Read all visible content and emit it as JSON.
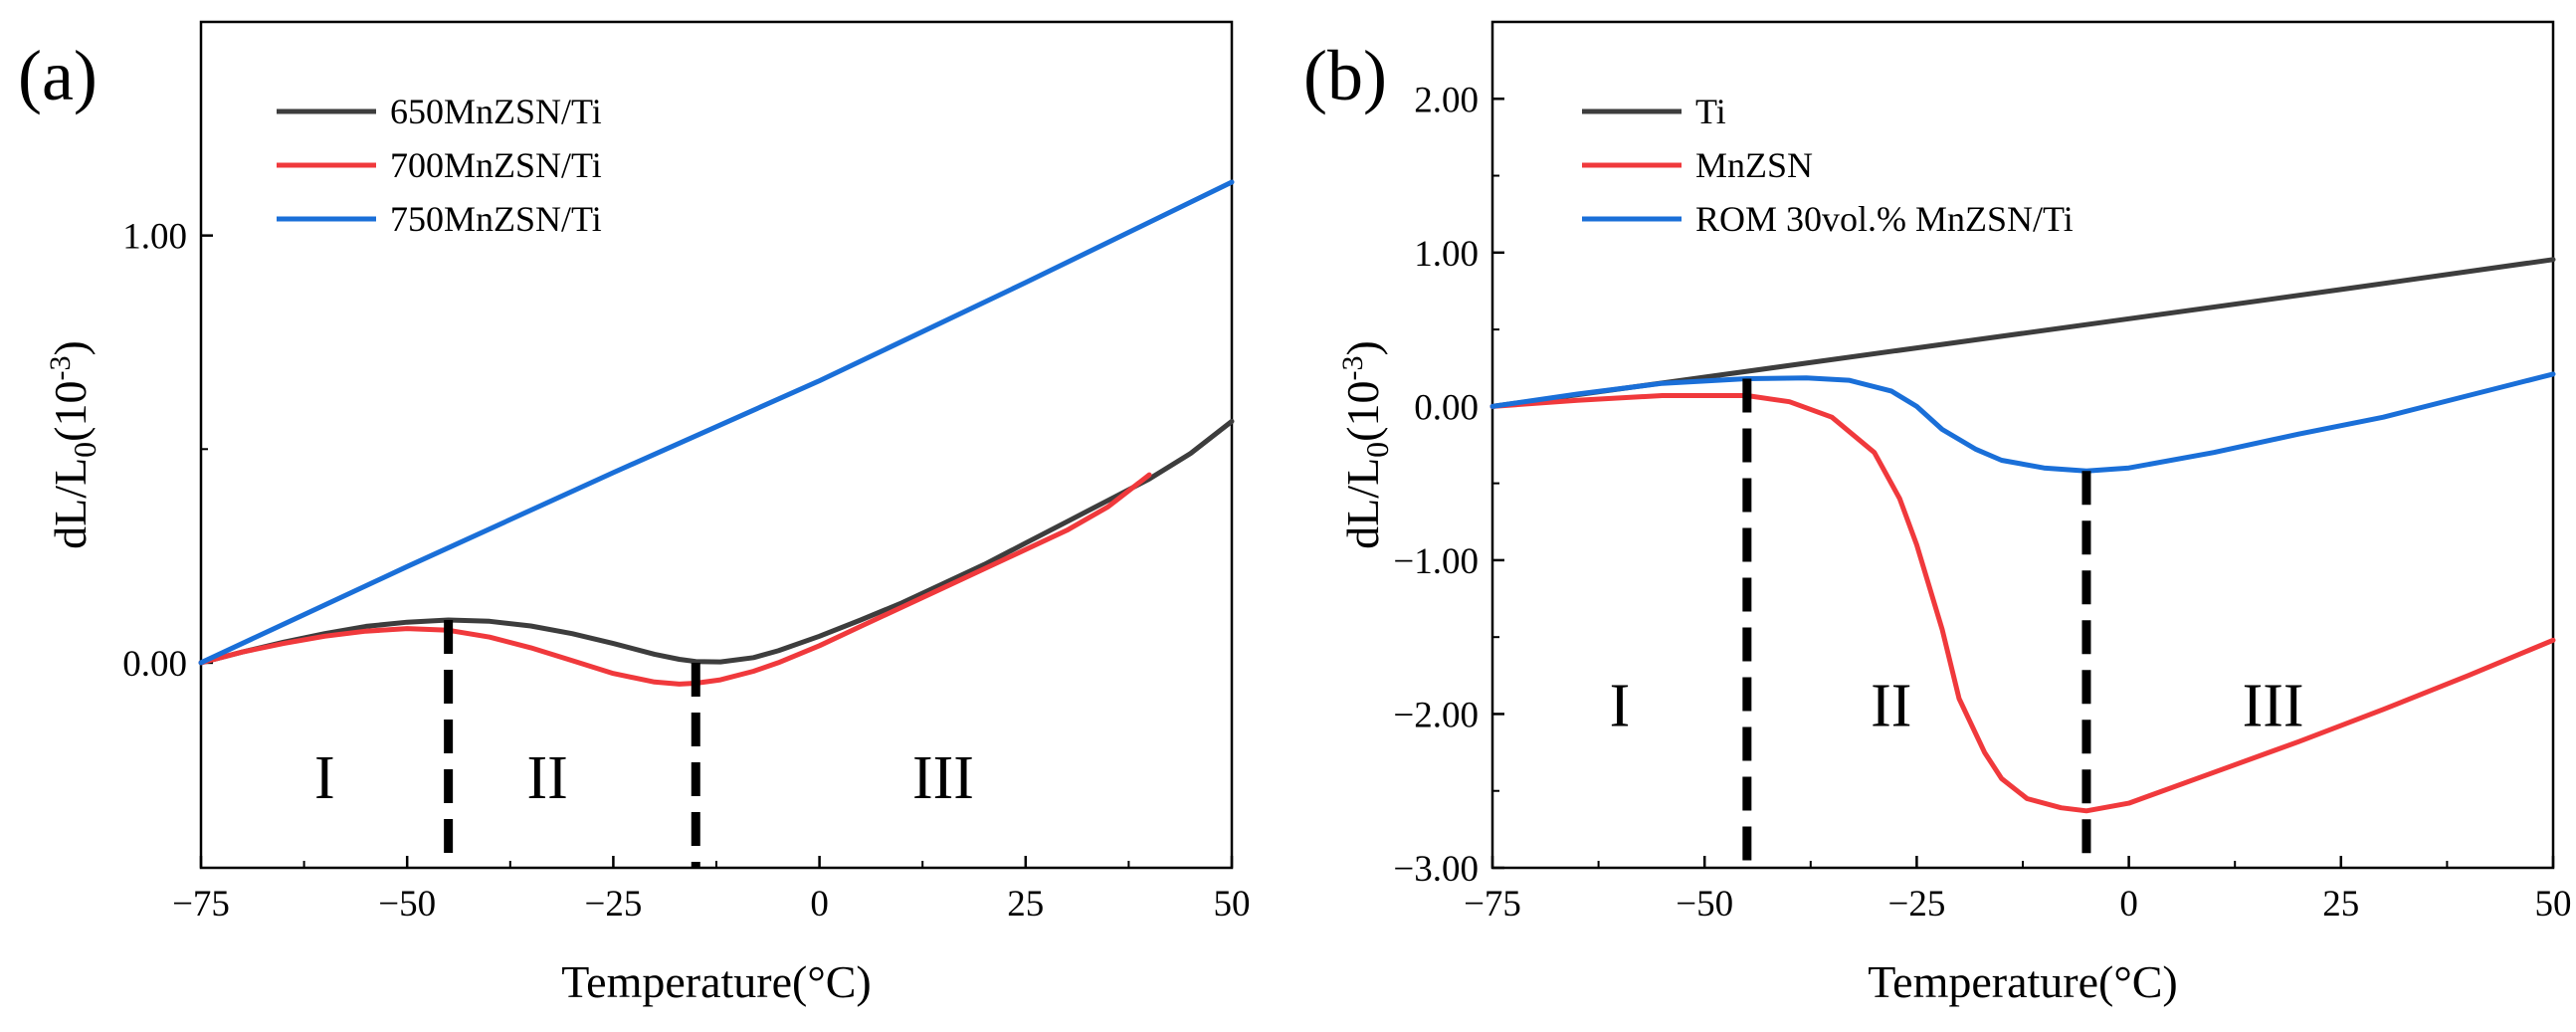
{
  "chart_data": [
    {
      "panel_label": "(a)",
      "type": "line",
      "xlabel": "Temperature(°C)",
      "ylabel": {
        "main": "dL/L",
        "sub": "0",
        "paren": "(10",
        "sup": "-3",
        "close": ")"
      },
      "xlim": [
        -75,
        50
      ],
      "ylim": [
        -0.48,
        1.5
      ],
      "x_ticks": [
        -75,
        -50,
        -25,
        0,
        25,
        50
      ],
      "x_tick_labels": [
        "−75",
        "−50",
        "−25",
        "0",
        "25",
        "50"
      ],
      "y_ticks": [
        0,
        1
      ],
      "y_tick_labels": [
        "0.00",
        "1.00"
      ],
      "legend_position": "top-left",
      "series": [
        {
          "name": "650MnZSN/Ti",
          "color": "#3d3d3d",
          "points": [
            [
              -75,
              0
            ],
            [
              -70,
              0.025
            ],
            [
              -65,
              0.048
            ],
            [
              -60,
              0.068
            ],
            [
              -55,
              0.085
            ],
            [
              -50,
              0.095
            ],
            [
              -45,
              0.1
            ],
            [
              -40,
              0.097
            ],
            [
              -35,
              0.086
            ],
            [
              -30,
              0.068
            ],
            [
              -25,
              0.045
            ],
            [
              -20,
              0.02
            ],
            [
              -17,
              0.008
            ],
            [
              -15,
              0.003
            ],
            [
              -12,
              0.002
            ],
            [
              -8,
              0.012
            ],
            [
              -5,
              0.028
            ],
            [
              0,
              0.062
            ],
            [
              5,
              0.1
            ],
            [
              10,
              0.14
            ],
            [
              15,
              0.185
            ],
            [
              20,
              0.23
            ],
            [
              25,
              0.28
            ],
            [
              30,
              0.33
            ],
            [
              35,
              0.38
            ],
            [
              40,
              0.43
            ],
            [
              45,
              0.49
            ],
            [
              50,
              0.565
            ]
          ]
        },
        {
          "name": "700MnZSN/Ti",
          "color": "#f0393c",
          "points": [
            [
              -75,
              0
            ],
            [
              -70,
              0.025
            ],
            [
              -65,
              0.045
            ],
            [
              -60,
              0.062
            ],
            [
              -55,
              0.074
            ],
            [
              -50,
              0.08
            ],
            [
              -45,
              0.076
            ],
            [
              -40,
              0.06
            ],
            [
              -35,
              0.035
            ],
            [
              -30,
              0.005
            ],
            [
              -25,
              -0.025
            ],
            [
              -20,
              -0.045
            ],
            [
              -17,
              -0.05
            ],
            [
              -15,
              -0.048
            ],
            [
              -12,
              -0.04
            ],
            [
              -8,
              -0.02
            ],
            [
              -5,
              0
            ],
            [
              0,
              0.04
            ],
            [
              5,
              0.085
            ],
            [
              10,
              0.13
            ],
            [
              15,
              0.175
            ],
            [
              20,
              0.22
            ],
            [
              25,
              0.265
            ],
            [
              30,
              0.31
            ],
            [
              35,
              0.365
            ],
            [
              40,
              0.44
            ]
          ]
        },
        {
          "name": "750MnZSN/Ti",
          "color": "#1a6fd8",
          "points": [
            [
              -75,
              0
            ],
            [
              -50,
              0.225
            ],
            [
              -25,
              0.445
            ],
            [
              0,
              0.66
            ],
            [
              25,
              0.89
            ],
            [
              50,
              1.125
            ]
          ]
        }
      ],
      "markers": [
        -45,
        -15
      ],
      "regions": [
        "I",
        "II",
        "III"
      ]
    },
    {
      "panel_label": "(b)",
      "type": "line",
      "xlabel": "Temperature(°C)",
      "ylabel": {
        "main": "dL/L",
        "sub": "0",
        "paren": "(10",
        "sup": "-3",
        "close": ")"
      },
      "xlim": [
        -75,
        50
      ],
      "ylim": [
        -3,
        2.5
      ],
      "x_ticks": [
        -75,
        -50,
        -25,
        0,
        25,
        50
      ],
      "x_tick_labels": [
        "−75",
        "−50",
        "−25",
        "0",
        "25",
        "50"
      ],
      "y_ticks": [
        -3,
        -2,
        -1,
        0,
        1,
        2
      ],
      "y_tick_labels": [
        "−3.00",
        "−2.00",
        "−1.00",
        "0.00",
        "1.00",
        "2.00"
      ],
      "legend_position": "top-left",
      "series": [
        {
          "name": "Ti",
          "color": "#3d3d3d",
          "points": [
            [
              -75,
              0
            ],
            [
              -50,
              0.19
            ],
            [
              -25,
              0.38
            ],
            [
              0,
              0.57
            ],
            [
              25,
              0.76
            ],
            [
              50,
              0.955
            ]
          ]
        },
        {
          "name": "MnZSN",
          "color": "#f0393c",
          "points": [
            [
              -75,
              0
            ],
            [
              -65,
              0.04
            ],
            [
              -55,
              0.07
            ],
            [
              -45,
              0.07
            ],
            [
              -40,
              0.03
            ],
            [
              -35,
              -0.07
            ],
            [
              -30,
              -0.3
            ],
            [
              -27,
              -0.6
            ],
            [
              -25,
              -0.9
            ],
            [
              -22,
              -1.45
            ],
            [
              -20,
              -1.9
            ],
            [
              -17,
              -2.25
            ],
            [
              -15,
              -2.42
            ],
            [
              -12,
              -2.55
            ],
            [
              -8,
              -2.61
            ],
            [
              -5,
              -2.63
            ],
            [
              0,
              -2.58
            ],
            [
              10,
              -2.38
            ],
            [
              20,
              -2.18
            ],
            [
              30,
              -1.97
            ],
            [
              40,
              -1.75
            ],
            [
              50,
              -1.52
            ]
          ]
        },
        {
          "name": "ROM 30vol.% MnZSN/Ti",
          "color": "#1a6fd8",
          "points": [
            [
              -75,
              0
            ],
            [
              -65,
              0.08
            ],
            [
              -55,
              0.15
            ],
            [
              -45,
              0.18
            ],
            [
              -38,
              0.185
            ],
            [
              -33,
              0.17
            ],
            [
              -28,
              0.1
            ],
            [
              -25,
              0.0
            ],
            [
              -22,
              -0.15
            ],
            [
              -18,
              -0.28
            ],
            [
              -15,
              -0.35
            ],
            [
              -10,
              -0.4
            ],
            [
              -5,
              -0.42
            ],
            [
              0,
              -0.4
            ],
            [
              10,
              -0.3
            ],
            [
              20,
              -0.18
            ],
            [
              30,
              -0.07
            ],
            [
              40,
              0.07
            ],
            [
              50,
              0.21
            ]
          ]
        }
      ],
      "markers": [
        -45,
        -5
      ],
      "regions": [
        "I",
        "II",
        "III"
      ]
    }
  ]
}
